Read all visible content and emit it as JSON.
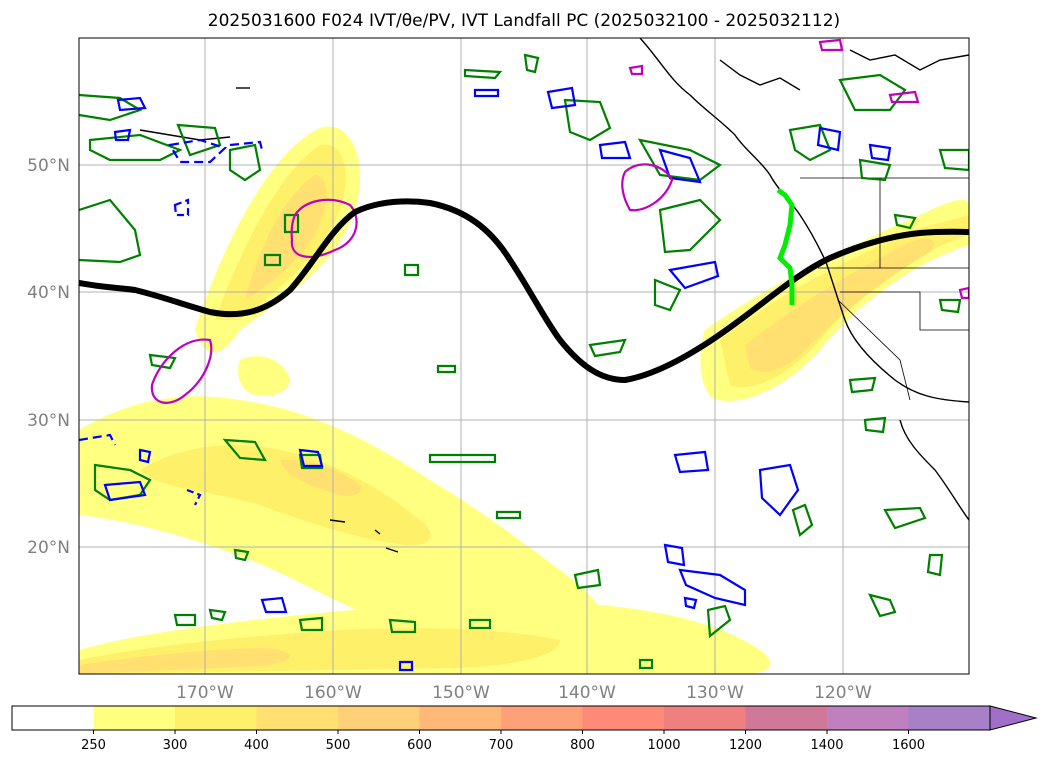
{
  "title": "2025031600 F024 IVT/θe/PV, IVT Landfall PC (2025032100 - 2025032112)",
  "map": {
    "lat_labels": [
      "50°N",
      "40°N",
      "30°N",
      "20°N"
    ],
    "lon_labels": [
      "170°W",
      "160°W",
      "150°W",
      "140°W",
      "130°W",
      "120°W"
    ],
    "grid": true,
    "colors": {
      "theta_e_contour": "#008000",
      "pv_contour": "#0000ff",
      "ivt_contour": "#c000c0",
      "mean_line": "#000000",
      "landfall_line": "#00ee00",
      "coastline": "#000000"
    }
  },
  "colorbar": {
    "ticks": [
      "250",
      "300",
      "400",
      "500",
      "600",
      "700",
      "800",
      "1000",
      "1200",
      "1400",
      "1600"
    ],
    "colors": [
      "#ffffff",
      "#ffff80",
      "#fff06a",
      "#ffe070",
      "#ffd078",
      "#ffb878",
      "#ffa078",
      "#ff8a78",
      "#f08080",
      "#d07898",
      "#bf80bf",
      "#a880c8",
      "#a070c8"
    ],
    "extend": "max"
  }
}
